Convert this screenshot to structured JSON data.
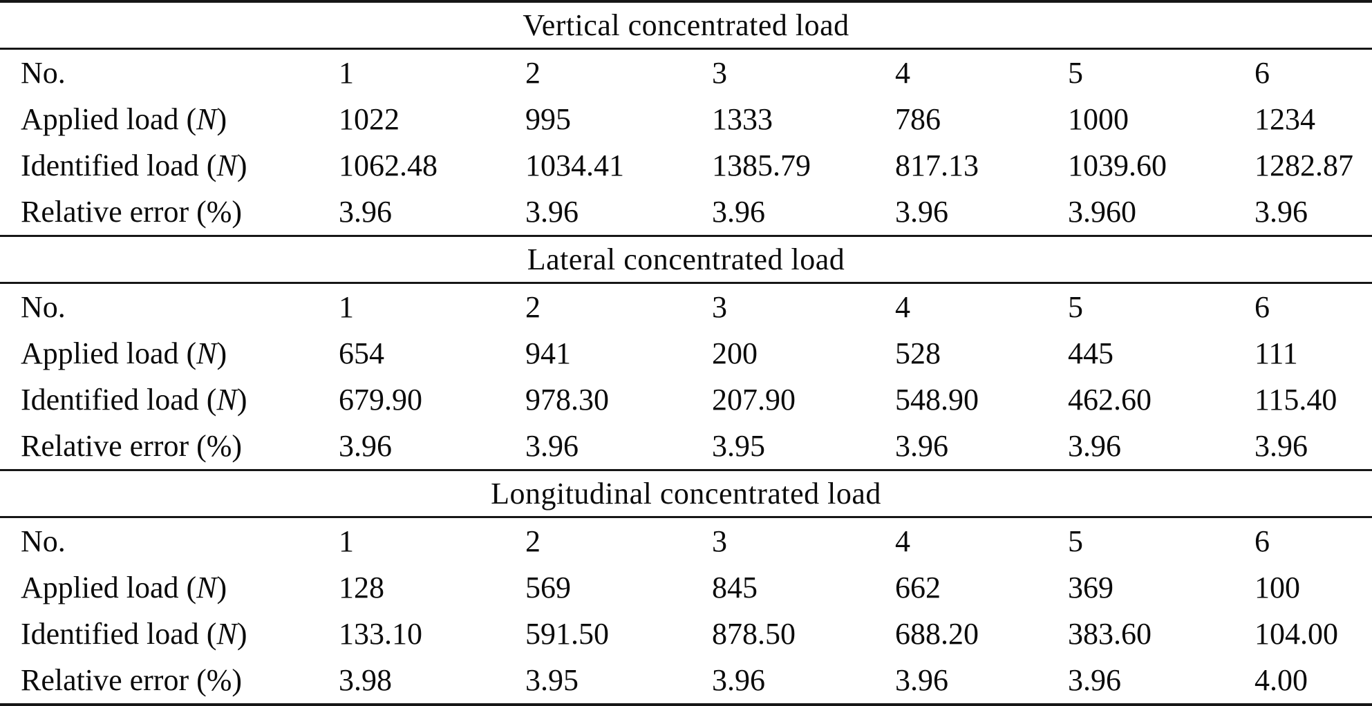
{
  "table": {
    "column_count": 6,
    "sections": [
      {
        "title": "Vertical concentrated load",
        "rows": [
          {
            "label": {
              "pre": "No.",
              "it": "",
              "post": ""
            },
            "values": [
              "1",
              "2",
              "3",
              "4",
              "5",
              "6"
            ]
          },
          {
            "label": {
              "pre": "Applied load (",
              "it": "N",
              "post": ")"
            },
            "values": [
              "1022",
              "995",
              "1333",
              "786",
              "1000",
              "1234"
            ]
          },
          {
            "label": {
              "pre": "Identified load (",
              "it": "N",
              "post": ")"
            },
            "values": [
              "1062.48",
              "1034.41",
              "1385.79",
              "817.13",
              "1039.60",
              "1282.87"
            ]
          },
          {
            "label": {
              "pre": "Relative error (%)",
              "it": "",
              "post": ""
            },
            "values": [
              "3.96",
              "3.96",
              "3.96",
              "3.96",
              "3.960",
              "3.96"
            ]
          }
        ]
      },
      {
        "title": "Lateral concentrated load",
        "rows": [
          {
            "label": {
              "pre": "No.",
              "it": "",
              "post": ""
            },
            "values": [
              "1",
              "2",
              "3",
              "4",
              "5",
              "6"
            ]
          },
          {
            "label": {
              "pre": "Applied load (",
              "it": "N",
              "post": ")"
            },
            "values": [
              "654",
              "941",
              "200",
              "528",
              "445",
              "111"
            ]
          },
          {
            "label": {
              "pre": "Identified load (",
              "it": "N",
              "post": ")"
            },
            "values": [
              "679.90",
              "978.30",
              "207.90",
              "548.90",
              "462.60",
              "115.40"
            ]
          },
          {
            "label": {
              "pre": "Relative error (%)",
              "it": "",
              "post": ""
            },
            "values": [
              "3.96",
              "3.96",
              "3.95",
              "3.96",
              "3.96",
              "3.96"
            ]
          }
        ]
      },
      {
        "title": "Longitudinal concentrated load",
        "rows": [
          {
            "label": {
              "pre": "No.",
              "it": "",
              "post": ""
            },
            "values": [
              "1",
              "2",
              "3",
              "4",
              "5",
              "6"
            ]
          },
          {
            "label": {
              "pre": "Applied load (",
              "it": "N",
              "post": ")"
            },
            "values": [
              "128",
              "569",
              "845",
              "662",
              "369",
              "100"
            ]
          },
          {
            "label": {
              "pre": "Identified load (",
              "it": "N",
              "post": ")"
            },
            "values": [
              "133.10",
              "591.50",
              "878.50",
              "688.20",
              "383.60",
              "104.00"
            ]
          },
          {
            "label": {
              "pre": "Relative error (%)",
              "it": "",
              "post": ""
            },
            "values": [
              "3.98",
              "3.95",
              "3.96",
              "3.96",
              "3.96",
              "4.00"
            ]
          }
        ]
      }
    ]
  }
}
